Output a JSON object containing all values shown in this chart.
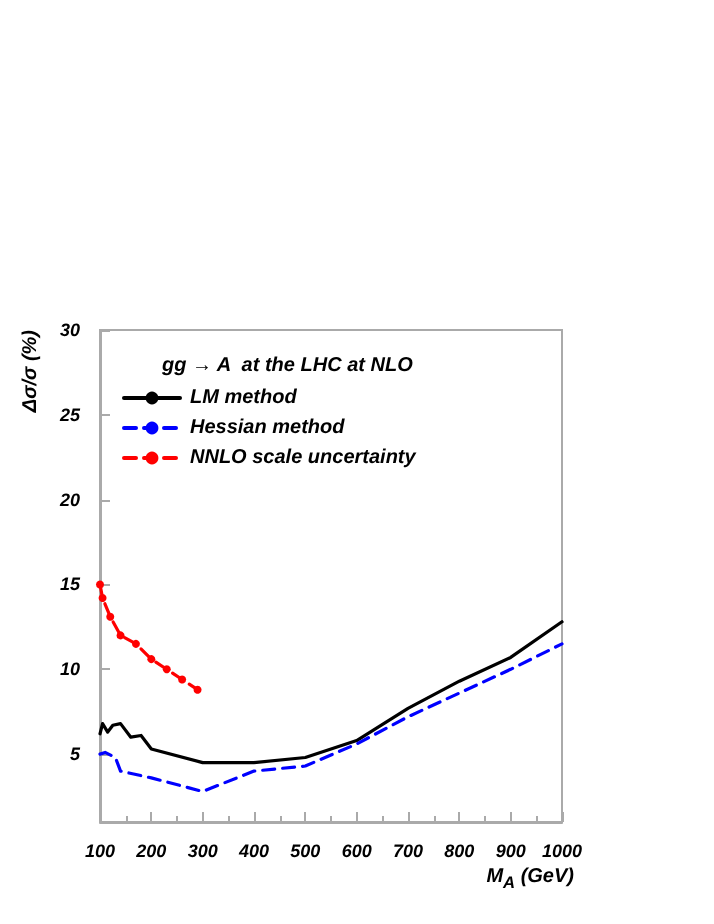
{
  "chart_data": {
    "type": "line",
    "legend_title": "gg → A  at the LHC at NLO",
    "xlabel": "M$_{A}$ (GeV)",
    "ylabel": "Δσ/σ (%)",
    "xlim": [
      100,
      1000
    ],
    "xticks": [
      100,
      200,
      300,
      400,
      500,
      600,
      700,
      800,
      900,
      1000
    ],
    "ylim": [
      1,
      30
    ],
    "yticks": [
      5,
      10,
      15,
      20,
      25,
      30
    ],
    "grid": false,
    "legend": "top left",
    "series": [
      {
        "name": "LM method",
        "color": "#000000",
        "line_style": "solid",
        "marker": "none",
        "x": [
          100,
          105,
          115,
          125,
          140,
          160,
          180,
          200,
          300,
          400,
          500,
          600,
          700,
          800,
          900,
          1000
        ],
        "values": [
          6.2,
          6.8,
          6.3,
          6.7,
          6.8,
          6.0,
          6.1,
          5.3,
          4.5,
          4.5,
          4.8,
          5.8,
          7.7,
          9.3,
          10.7,
          12.8
        ]
      },
      {
        "name": "Hessian method",
        "color": "#0000ff",
        "line_style": "dashed",
        "marker": "none",
        "x": [
          100,
          110,
          130,
          140,
          200,
          300,
          400,
          500,
          600,
          700,
          800,
          900,
          1000
        ],
        "values": [
          5.0,
          5.1,
          4.8,
          4.0,
          3.6,
          2.8,
          4.0,
          4.3,
          5.6,
          7.2,
          8.6,
          10.0,
          11.5
        ]
      },
      {
        "name": "NNLO scale uncertainty",
        "color": "#ff0000",
        "line_style": "dashed",
        "marker": "circle",
        "x": [
          100,
          105,
          120,
          140,
          170,
          200,
          230,
          260,
          290
        ],
        "values": [
          15.0,
          14.2,
          13.1,
          12.0,
          11.5,
          10.6,
          10.0,
          9.4,
          8.8
        ]
      }
    ]
  }
}
